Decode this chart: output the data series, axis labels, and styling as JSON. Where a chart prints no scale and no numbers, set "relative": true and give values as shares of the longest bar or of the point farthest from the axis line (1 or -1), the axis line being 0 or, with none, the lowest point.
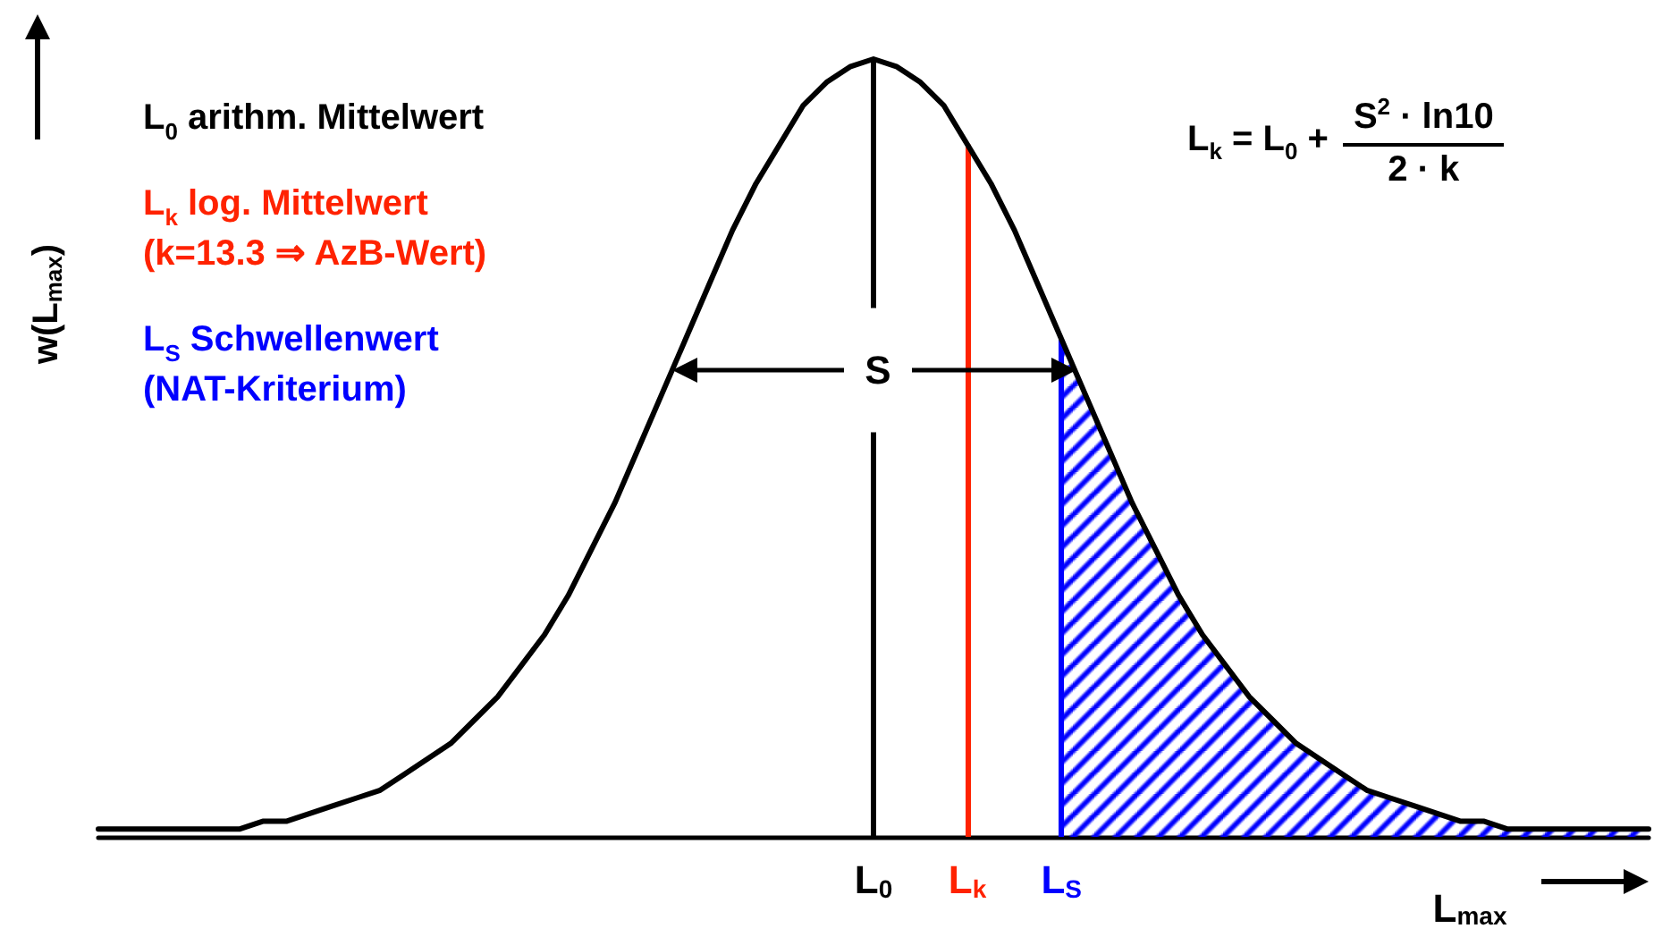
{
  "chart_data": {
    "type": "line",
    "relative": true,
    "tick_labels": "x",
    "marker": "none",
    "line_style": "solid",
    "xlabel": "L$_{max}$",
    "ylabel": "w(L$_{max}$)",
    "categories": [
      null,
      null,
      null,
      null,
      null,
      null,
      null,
      null,
      null,
      null,
      null,
      null,
      null,
      null,
      null,
      null,
      null,
      null,
      null,
      null,
      null,
      null,
      null,
      null,
      null,
      null,
      null,
      null,
      null,
      null,
      null,
      null,
      null,
      "L$_{0}$",
      null,
      null,
      null,
      "L$_{k}$",
      null,
      null,
      null,
      "L$_{S}$",
      null,
      null,
      null,
      null,
      null,
      null,
      null,
      null,
      null,
      null,
      null,
      null,
      null,
      null,
      null,
      null,
      null,
      null,
      null,
      null,
      null,
      null,
      null,
      null,
      null
    ],
    "series": [
      {
        "type": "area",
        "color": "#0000ff",
        "values": [
          null,
          null,
          null,
          null,
          null,
          null,
          null,
          null,
          null,
          null,
          null,
          null,
          null,
          null,
          null,
          null,
          null,
          null,
          null,
          null,
          null,
          null,
          null,
          null,
          null,
          null,
          null,
          null,
          null,
          null,
          null,
          null,
          null,
          null,
          null,
          null,
          null,
          null,
          null,
          null,
          null,
          0.64,
          0.57,
          0.5,
          0.43,
          0.37,
          0.31,
          0.26,
          0.22,
          0.18,
          0.15,
          0.12,
          0.1,
          0.08,
          0.06,
          0.05,
          0.04,
          0.03,
          0.02,
          0.02,
          0.01,
          0.01,
          0.01,
          0.01,
          0.01,
          0.01,
          0.01
        ]
      },
      {
        "type": "line",
        "color": "#000000",
        "values": [
          0.01,
          0.01,
          0.01,
          0.01,
          0.01,
          0.01,
          0.01,
          0.02,
          0.02,
          0.03,
          0.04,
          0.05,
          0.06,
          0.08,
          0.1,
          0.12,
          0.15,
          0.18,
          0.22,
          0.26,
          0.31,
          0.37,
          0.43,
          0.5,
          0.57,
          0.64,
          0.71,
          0.78,
          0.84,
          0.89,
          0.94,
          0.97,
          0.99,
          1,
          0.99,
          0.97,
          0.94,
          0.89,
          0.84,
          0.78,
          0.71,
          0.64,
          0.57,
          0.5,
          0.43,
          0.37,
          0.31,
          0.26,
          0.22,
          0.18,
          0.15,
          0.12,
          0.1,
          0.08,
          0.06,
          0.05,
          0.04,
          0.03,
          0.02,
          0.02,
          0.01,
          0.01,
          0.01,
          0.01,
          0.01,
          0.01,
          0.01
        ]
      }
    ],
    "ref_lines": [
      {
        "axis": "x",
        "value": "L$_{0}$",
        "label": "L$_{0}$ arithm. Mittelwert",
        "color": "#000000"
      },
      {
        "axis": "x",
        "value": "L$_{k}$",
        "label": "L$_{k}$ log. Mittelwert\n(k=13.3 ⇒ AzB-Wert)",
        "color": "#ff2200"
      },
      {
        "axis": "x",
        "value": "L$_{S}$",
        "label": "L$_{S}$ Schwellenwert\n(NAT-Kriterium)",
        "color": "#0000ff"
      }
    ],
    "annotations": [
      "L$_{k}$ = L$_{0}$ + S$^{2}$ · ln10\n2 · k",
      "S"
    ]
  }
}
